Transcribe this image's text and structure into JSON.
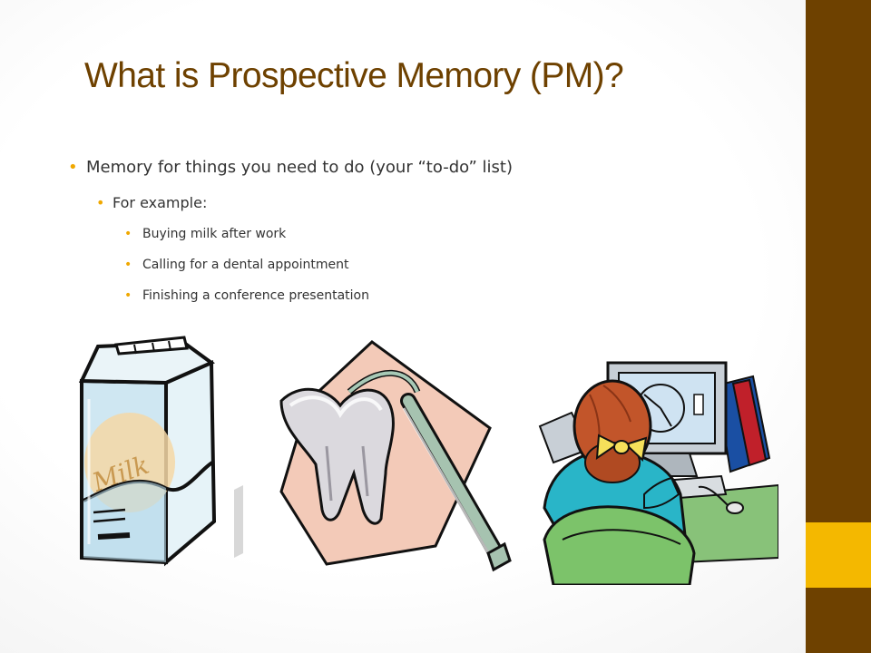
{
  "slide": {
    "title": "What is Prospective Memory (PM)?",
    "bullets": {
      "level1": "Memory for things you need to do (your “to-do” list)",
      "level2": "For example:",
      "level3": [
        "Buying milk after work",
        "Calling for a dental appointment",
        "Finishing a conference presentation"
      ]
    },
    "bullet_marker": "•",
    "clipart_text": {
      "milk_label": "Milk"
    }
  },
  "colors": {
    "title": "#6e4100",
    "sidebar": "#6e4100",
    "sidebar_accent": "#f4b800",
    "bullet_marker": "#f0a800",
    "body_text": "#333333"
  },
  "icons": [
    "milk-carton-icon",
    "dental-tooth-icon",
    "woman-at-computer-icon"
  ]
}
